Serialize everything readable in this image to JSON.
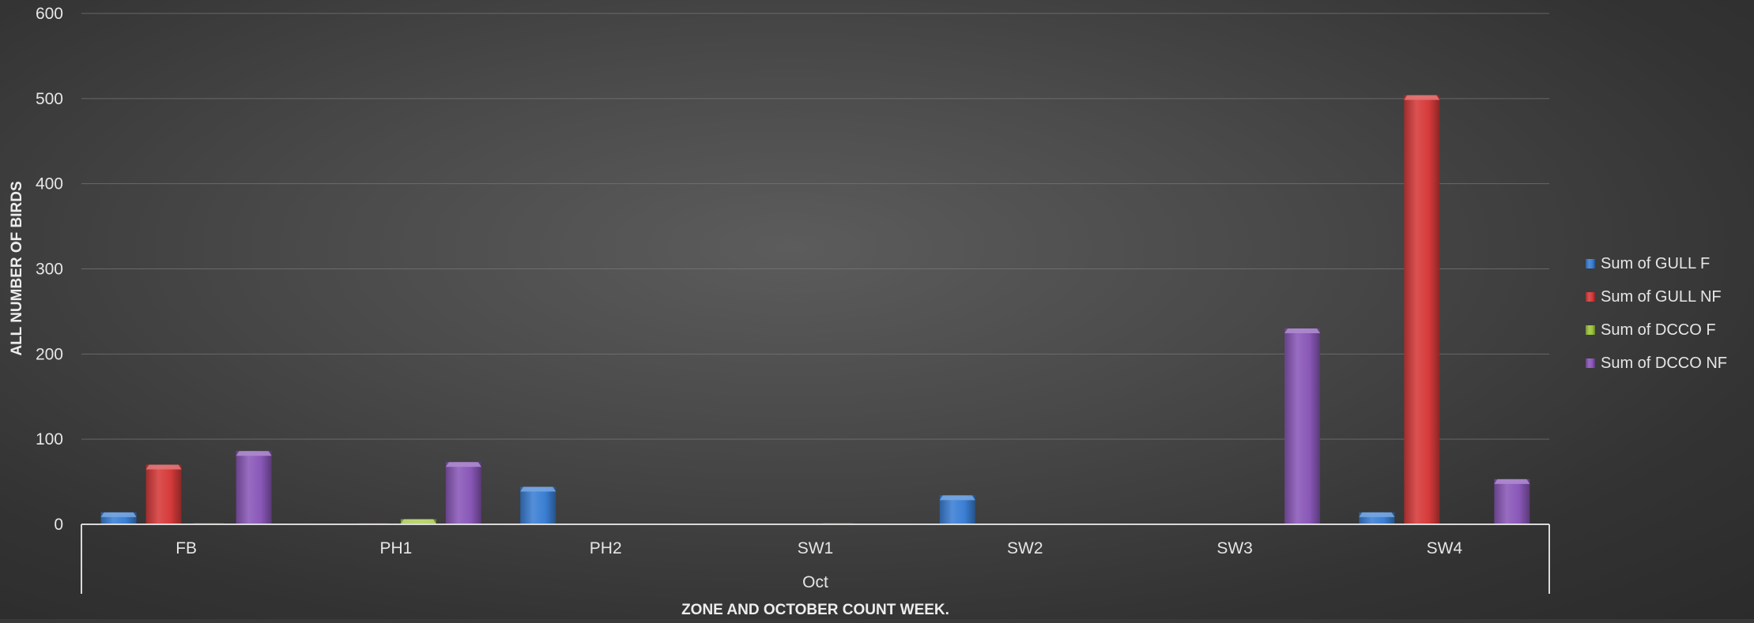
{
  "chart_data": {
    "type": "bar",
    "categories": [
      "FB",
      "PH1",
      "PH2",
      "SW1",
      "SW2",
      "SW3",
      "SW4"
    ],
    "group_label": "Oct",
    "xlabel": "ZONE AND OCTOBER COUNT WEEK.",
    "ylabel": "ALL NUMBER OF BIRDS",
    "ylim": [
      0,
      600
    ],
    "yticks": [
      0,
      100,
      200,
      300,
      400,
      500,
      600
    ],
    "grid": true,
    "legend_position": "right",
    "series": [
      {
        "name": "Sum of GULL F",
        "color": "#3b7fd4",
        "values": [
          14,
          0,
          44,
          0,
          34,
          0,
          14
        ]
      },
      {
        "name": "Sum of GULL NF",
        "color": "#d63a3a",
        "values": [
          70,
          1,
          0,
          0,
          0,
          0,
          504
        ]
      },
      {
        "name": "Sum of DCCO F",
        "color": "#9cc43c",
        "values": [
          1,
          6,
          0,
          1,
          0,
          0,
          0
        ]
      },
      {
        "name": "Sum of DCCO NF",
        "color": "#8a58b8",
        "values": [
          86,
          73,
          0,
          0,
          0,
          230,
          53
        ]
      }
    ]
  }
}
